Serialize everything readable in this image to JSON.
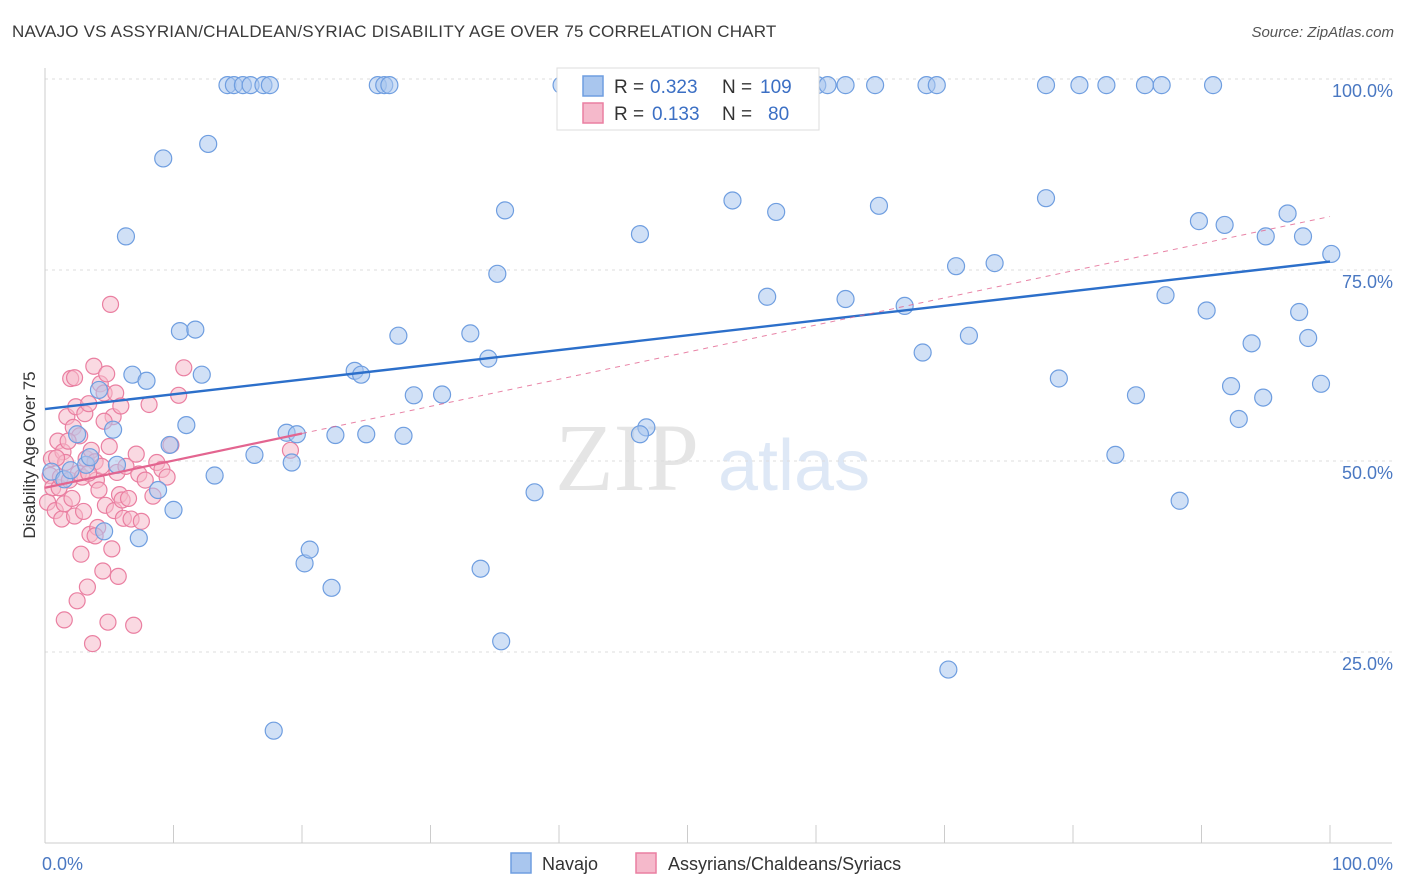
{
  "title": "NAVAJO VS ASSYRIAN/CHALDEAN/SYRIAC DISABILITY AGE OVER 75 CORRELATION CHART",
  "source": "Source: ZipAtlas.com",
  "watermark": {
    "zip": "ZIP",
    "atlas": "atlas"
  },
  "legend": {
    "rows": [
      {
        "r_label": "R =",
        "r_value": "0.323",
        "n_label": "N =",
        "n_value": "109"
      },
      {
        "r_label": "R =",
        "r_value": "0.133",
        "n_label": "N =",
        "n_value": "80"
      }
    ]
  },
  "bottom_legend": [
    "Navajo",
    "Assyrians/Chaldeans/Syriacs"
  ],
  "colors": {
    "navajo_fill": "#a9c6ee",
    "navajo_stroke": "#6f9ee0",
    "navajo_line": "#2c6fca",
    "assyrian_fill": "#f5b9cb",
    "assyrian_stroke": "#ea7fa1",
    "assyrian_line": "#e36590",
    "grid": "#dddddd",
    "tick_text": "#4a78c2"
  },
  "chart_data": {
    "type": "scatter",
    "title": "NAVAJO VS ASSYRIAN/CHALDEAN/SYRIAC DISABILITY AGE OVER 75 CORRELATION CHART",
    "xlabel": "",
    "ylabel": "Disability Age Over 75",
    "xlim": [
      0,
      100
    ],
    "ylim": [
      0,
      100
    ],
    "x_ticks": [
      "0.0%",
      "100.0%"
    ],
    "y_ticks": [
      {
        "value": 100,
        "label": "100.0%"
      },
      {
        "value": 75,
        "label": "75.0%"
      },
      {
        "value": 50,
        "label": "50.0%"
      },
      {
        "value": 25,
        "label": "25.0%"
      }
    ],
    "grid": true,
    "legend_position": "top-center",
    "series": [
      {
        "name": "Navajo",
        "R": 0.323,
        "N": 109,
        "trend": {
          "x": [
            0,
            100
          ],
          "y": [
            56.8,
            76.1
          ]
        },
        "points": [
          [
            0.5,
            48.6
          ],
          [
            1.5,
            47.6
          ],
          [
            2,
            48.8
          ],
          [
            2.5,
            53.5
          ],
          [
            3.2,
            49.5
          ],
          [
            3.5,
            50.5
          ],
          [
            4.2,
            59.3
          ],
          [
            4.6,
            40.8
          ],
          [
            5.3,
            54.1
          ],
          [
            5.6,
            49.5
          ],
          [
            6.3,
            79.4
          ],
          [
            6.8,
            61.3
          ],
          [
            7.3,
            39.9
          ],
          [
            7.9,
            60.5
          ],
          [
            8.8,
            46.2
          ],
          [
            9.2,
            89.6
          ],
          [
            9.7,
            52.1
          ],
          [
            10,
            43.6
          ],
          [
            10.5,
            67
          ],
          [
            11,
            54.7
          ],
          [
            11.7,
            67.2
          ],
          [
            12.2,
            61.3
          ],
          [
            12.7,
            91.5
          ],
          [
            13.2,
            48.1
          ],
          [
            14.2,
            99.2
          ],
          [
            14.7,
            99.2
          ],
          [
            15.4,
            99.2
          ],
          [
            16,
            99.2
          ],
          [
            16.3,
            50.8
          ],
          [
            17,
            99.2
          ],
          [
            17.5,
            99.2
          ],
          [
            17.8,
            14.7
          ],
          [
            18.8,
            53.7
          ],
          [
            19.2,
            49.8
          ],
          [
            19.6,
            53.5
          ],
          [
            20.2,
            36.6
          ],
          [
            20.6,
            38.4
          ],
          [
            22.3,
            33.4
          ],
          [
            22.6,
            53.4
          ],
          [
            24.1,
            61.8
          ],
          [
            24.6,
            61.3
          ],
          [
            25,
            53.5
          ],
          [
            25.9,
            99.2
          ],
          [
            26.4,
            99.2
          ],
          [
            26.8,
            99.2
          ],
          [
            27.5,
            66.4
          ],
          [
            27.9,
            53.3
          ],
          [
            28.7,
            58.6
          ],
          [
            30.9,
            58.7
          ],
          [
            33.1,
            66.7
          ],
          [
            33.9,
            35.9
          ],
          [
            34.5,
            63.4
          ],
          [
            35.2,
            74.5
          ],
          [
            35.5,
            26.4
          ],
          [
            35.8,
            82.8
          ],
          [
            38.1,
            45.9
          ],
          [
            40.2,
            99.2
          ],
          [
            42.2,
            99.2
          ],
          [
            43.5,
            99.2
          ],
          [
            46.3,
            79.7
          ],
          [
            46.8,
            54.4
          ],
          [
            46.3,
            53.5
          ],
          [
            47.4,
            99.2
          ],
          [
            48.3,
            99.2
          ],
          [
            52.4,
            99.2
          ],
          [
            53.5,
            84.1
          ],
          [
            54.9,
            99.2
          ],
          [
            56.2,
            71.5
          ],
          [
            56.9,
            82.6
          ],
          [
            60.1,
            99.2
          ],
          [
            60.9,
            99.2
          ],
          [
            62.3,
            71.2
          ],
          [
            62.3,
            99.2
          ],
          [
            64.6,
            99.2
          ],
          [
            64.9,
            83.4
          ],
          [
            66.9,
            70.3
          ],
          [
            68.3,
            64.2
          ],
          [
            68.6,
            99.2
          ],
          [
            69.4,
            99.2
          ],
          [
            70.3,
            22.7
          ],
          [
            70.9,
            75.5
          ],
          [
            71.9,
            66.4
          ],
          [
            73.9,
            75.9
          ],
          [
            77.9,
            99.2
          ],
          [
            77.9,
            84.4
          ],
          [
            78.9,
            60.8
          ],
          [
            80.5,
            99.2
          ],
          [
            82.6,
            99.2
          ],
          [
            83.3,
            50.8
          ],
          [
            84.9,
            58.6
          ],
          [
            85.6,
            99.2
          ],
          [
            86.9,
            99.2
          ],
          [
            87.2,
            71.7
          ],
          [
            88.3,
            44.8
          ],
          [
            89.8,
            81.4
          ],
          [
            90.4,
            69.7
          ],
          [
            90.9,
            99.2
          ],
          [
            91.8,
            80.9
          ],
          [
            92.9,
            55.5
          ],
          [
            92.3,
            59.8
          ],
          [
            93.9,
            65.4
          ],
          [
            94.8,
            58.3
          ],
          [
            95,
            79.4
          ],
          [
            96.7,
            82.4
          ],
          [
            97.6,
            69.5
          ],
          [
            97.9,
            79.4
          ],
          [
            98.3,
            66.1
          ],
          [
            99.3,
            60.1
          ],
          [
            100.1,
            77.1
          ]
        ]
      },
      {
        "name": "Assyrians/Chaldeans/Syriacs",
        "R": 0.133,
        "N": 80,
        "trend": {
          "x": [
            0,
            20
          ],
          "y": [
            46.5,
            53.6
          ]
        },
        "points": [
          [
            0.2,
            44.6
          ],
          [
            0.4,
            48.1
          ],
          [
            0.5,
            50.3
          ],
          [
            0.6,
            46.5
          ],
          [
            0.8,
            43.5
          ],
          [
            1,
            52.6
          ],
          [
            1.1,
            46.5
          ],
          [
            1.2,
            47.9
          ],
          [
            1.3,
            42.4
          ],
          [
            1.4,
            51.2
          ],
          [
            1.5,
            44.4
          ],
          [
            1.6,
            49.8
          ],
          [
            1.7,
            55.8
          ],
          [
            1.9,
            47.5
          ],
          [
            2,
            60.8
          ],
          [
            2.1,
            45.1
          ],
          [
            2.2,
            54.4
          ],
          [
            2.3,
            42.8
          ],
          [
            2.4,
            57.1
          ],
          [
            2.5,
            31.7
          ],
          [
            2.6,
            48.4
          ],
          [
            2.7,
            53.3
          ],
          [
            2.8,
            37.8
          ],
          [
            2.9,
            47.9
          ],
          [
            3,
            43.4
          ],
          [
            3.1,
            56.2
          ],
          [
            3.2,
            50.3
          ],
          [
            3.3,
            33.5
          ],
          [
            3.4,
            57.5
          ],
          [
            3.5,
            40.4
          ],
          [
            3.6,
            51.4
          ],
          [
            3.7,
            26.1
          ],
          [
            3.8,
            62.4
          ],
          [
            3.9,
            49.9
          ],
          [
            4,
            47.5
          ],
          [
            4.1,
            41.3
          ],
          [
            4.2,
            46.2
          ],
          [
            4.3,
            60.1
          ],
          [
            4.4,
            49.3
          ],
          [
            4.5,
            35.6
          ],
          [
            4.6,
            58.9
          ],
          [
            4.7,
            44.2
          ],
          [
            4.8,
            61.4
          ],
          [
            4.9,
            28.9
          ],
          [
            5,
            51.9
          ],
          [
            5.1,
            70.5
          ],
          [
            5.2,
            38.5
          ],
          [
            5.3,
            55.8
          ],
          [
            5.4,
            43.5
          ],
          [
            5.5,
            58.9
          ],
          [
            5.6,
            48.5
          ],
          [
            5.7,
            34.9
          ],
          [
            5.8,
            45.6
          ],
          [
            5.9,
            57.2
          ],
          [
            6,
            44.9
          ],
          [
            6.1,
            42.5
          ],
          [
            6.3,
            49.3
          ],
          [
            6.5,
            45.1
          ],
          [
            6.7,
            42.4
          ],
          [
            6.9,
            28.5
          ],
          [
            7.1,
            50.9
          ],
          [
            7.3,
            48.3
          ],
          [
            7.5,
            42.1
          ],
          [
            7.8,
            47.5
          ],
          [
            8.1,
            57.4
          ],
          [
            8.4,
            45.4
          ],
          [
            8.7,
            49.8
          ],
          [
            9.1,
            48.9
          ],
          [
            9.5,
            47.9
          ],
          [
            9.8,
            52.1
          ],
          [
            10.4,
            58.6
          ],
          [
            10.8,
            62.2
          ],
          [
            1.5,
            29.2
          ],
          [
            2.3,
            60.9
          ],
          [
            3.4,
            48.4
          ],
          [
            4.6,
            55.2
          ],
          [
            1.8,
            52.6
          ],
          [
            3.9,
            40.2
          ],
          [
            19.1,
            51.4
          ],
          [
            0.9,
            50.4
          ]
        ]
      }
    ]
  }
}
